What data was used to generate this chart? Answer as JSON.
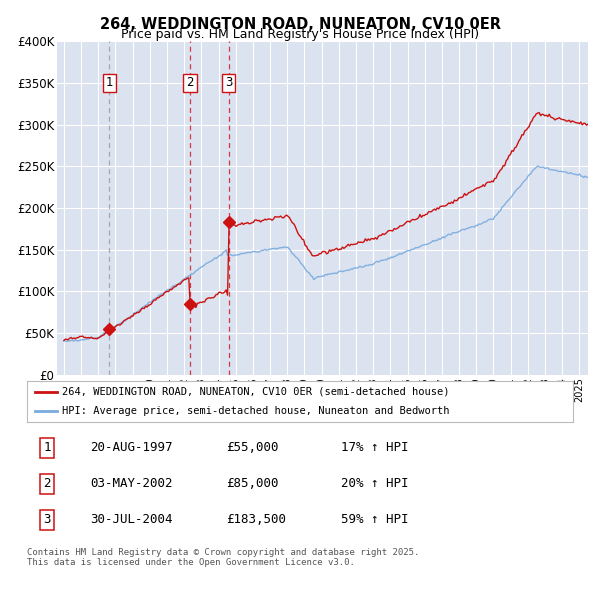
{
  "title": "264, WEDDINGTON ROAD, NUNEATON, CV10 0ER",
  "subtitle": "Price paid vs. HM Land Registry's House Price Index (HPI)",
  "ylim": [
    0,
    400000
  ],
  "yticks": [
    0,
    50000,
    100000,
    150000,
    200000,
    250000,
    300000,
    350000,
    400000
  ],
  "ytick_labels": [
    "£0",
    "£50K",
    "£100K",
    "£150K",
    "£200K",
    "£250K",
    "£300K",
    "£350K",
    "£400K"
  ],
  "bg_color": "#dce3f0",
  "grid_color": "#ffffff",
  "red_color": "#cc1111",
  "blue_color": "#7aaadd",
  "sale_year_floats": [
    1997.64,
    2002.34,
    2004.58
  ],
  "sale_prices": [
    55000,
    85000,
    183500
  ],
  "sale_labels": [
    "1",
    "2",
    "3"
  ],
  "legend_red": "264, WEDDINGTON ROAD, NUNEATON, CV10 0ER (semi-detached house)",
  "legend_blue": "HPI: Average price, semi-detached house, Nuneaton and Bedworth",
  "footer": "Contains HM Land Registry data © Crown copyright and database right 2025.\nThis data is licensed under the Open Government Licence v3.0.",
  "table_data": [
    [
      "1",
      "20-AUG-1997",
      "£55,000",
      "17% ↑ HPI"
    ],
    [
      "2",
      "03-MAY-2002",
      "£85,000",
      "20% ↑ HPI"
    ],
    [
      "3",
      "30-JUL-2004",
      "£183,500",
      "59% ↑ HPI"
    ]
  ]
}
